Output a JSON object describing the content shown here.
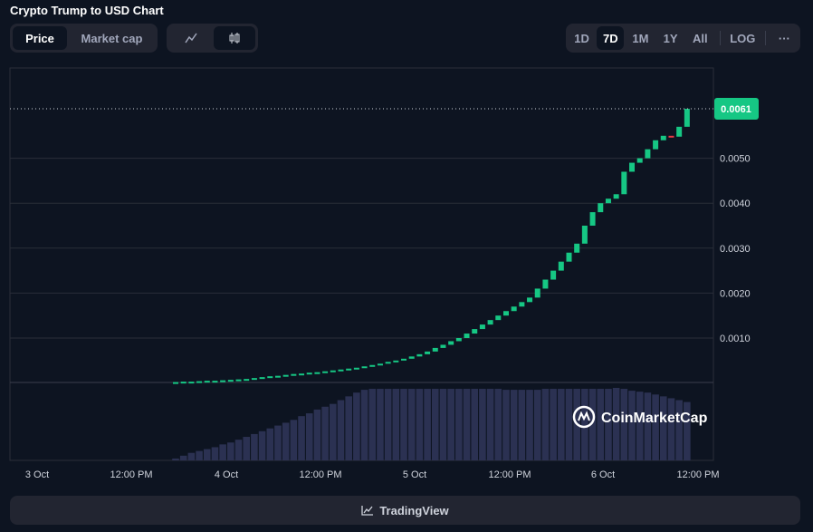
{
  "title": "Crypto Trump to USD Chart",
  "metric_tabs": [
    {
      "label": "Price",
      "active": true
    },
    {
      "label": "Market cap",
      "active": false
    }
  ],
  "chart_type_toggle": [
    {
      "icon": "line-chart-icon",
      "active": false
    },
    {
      "icon": "candlestick-icon",
      "active": true
    }
  ],
  "range_tabs": [
    {
      "label": "1D",
      "active": false
    },
    {
      "label": "7D",
      "active": true
    },
    {
      "label": "1M",
      "active": false
    },
    {
      "label": "1Y",
      "active": false
    },
    {
      "label": "All",
      "active": false
    }
  ],
  "log_label": "LOG",
  "more_label": "···",
  "tradingview_label": "TradingView",
  "watermark": "CoinMarketCap",
  "colors": {
    "up": "#16c784",
    "down": "#ea3943",
    "volume": "#2b3152",
    "background": "#0d1421",
    "price_badge": "#16c784"
  },
  "chart_data": {
    "type": "candlestick",
    "current_price_label": "0.0061",
    "y_ticks": [
      "0.0050",
      "0.0040",
      "0.0030",
      "0.0020",
      "0.0010"
    ],
    "y_tick_values": [
      0.005,
      0.004,
      0.003,
      0.002,
      0.001
    ],
    "ylim": [
      0,
      0.0061
    ],
    "x_ticks": [
      "3 Oct",
      "12:00 PM",
      "4 Oct",
      "12:00 PM",
      "5 Oct",
      "12:00 PM",
      "6 Oct",
      "12:00 PM"
    ],
    "interval": "1h",
    "first_candle": "3 Oct 18:00",
    "close": [
      2e-05,
      3e-05,
      3e-05,
      4e-05,
      5e-05,
      5e-05,
      6e-05,
      7e-05,
      8e-05,
      9e-05,
      0.00011,
      0.00013,
      0.00015,
      0.00016,
      0.00018,
      0.0002,
      0.00021,
      0.00023,
      0.00024,
      0.00026,
      0.00028,
      0.0003,
      0.00032,
      0.00034,
      0.00037,
      0.0004,
      0.00043,
      0.00047,
      0.0005,
      0.00054,
      0.00059,
      0.00064,
      0.0007,
      0.00078,
      0.00085,
      0.00093,
      0.001,
      0.0011,
      0.0012,
      0.0013,
      0.0014,
      0.0015,
      0.0016,
      0.0017,
      0.0018,
      0.0019,
      0.0021,
      0.0023,
      0.0025,
      0.0027,
      0.0029,
      0.0031,
      0.0035,
      0.0038,
      0.004,
      0.0041,
      0.0042,
      0.0047,
      0.0049,
      0.005,
      0.0052,
      0.0054,
      0.0055,
      0.00548,
      0.0057,
      0.0061
    ],
    "volume_relative": [
      2,
      5,
      8,
      10,
      12,
      14,
      17,
      19,
      22,
      25,
      28,
      31,
      34,
      37,
      40,
      43,
      47,
      50,
      54,
      57,
      60,
      64,
      68,
      72,
      75,
      76,
      76,
      76,
      76,
      76,
      76,
      76,
      76,
      76,
      76,
      76,
      76,
      76,
      76,
      76,
      76,
      76,
      75,
      75,
      75,
      75,
      75,
      76,
      76,
      76,
      76,
      76,
      76,
      76,
      76,
      76,
      77,
      76,
      74,
      73,
      72,
      70,
      68,
      66,
      64,
      62
    ]
  }
}
